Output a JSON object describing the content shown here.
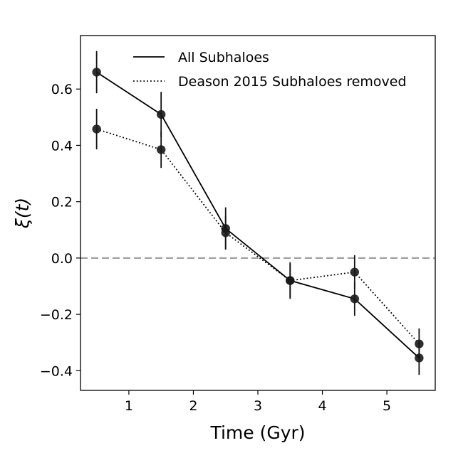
{
  "chart_data": {
    "type": "line",
    "title": "",
    "xlabel": "Time (Gyr)",
    "ylabel": "ξ(t)",
    "xlim": [
      0.25,
      5.75
    ],
    "ylim": [
      -0.47,
      0.79
    ],
    "xticks": [
      1,
      2,
      3,
      4,
      5
    ],
    "xtick_labels": [
      "1",
      "2",
      "3",
      "4",
      "5"
    ],
    "yticks": [
      -0.4,
      -0.2,
      0.0,
      0.2,
      0.4,
      0.6
    ],
    "ytick_labels": [
      "−0.4",
      "−0.2",
      "0.0",
      "0.2",
      "0.4",
      "0.6"
    ],
    "grid": false,
    "legend_position": "top-right",
    "reference_line": {
      "y": 0.0,
      "style": "dashed",
      "color": "#a0a0a0"
    },
    "x": [
      0.5,
      1.5,
      2.5,
      3.5,
      4.5,
      5.5
    ],
    "series": [
      {
        "name": "All Subhaloes",
        "line_style": "solid",
        "values": [
          0.66,
          0.51,
          0.105,
          -0.08,
          -0.145,
          -0.355
        ],
        "errors": [
          0.075,
          0.08,
          0.075,
          0.065,
          0.06,
          0.06
        ]
      },
      {
        "name": "Deason 2015 Subhaloes removed",
        "line_style": "dotted",
        "values": [
          0.458,
          0.385,
          0.09,
          -0.08,
          -0.05,
          -0.305
        ],
        "errors": [
          0.072,
          0.065,
          0.06,
          0.06,
          0.06,
          0.055
        ]
      }
    ],
    "colors": {
      "line": "#000000",
      "marker": "#1a1a1a"
    }
  }
}
